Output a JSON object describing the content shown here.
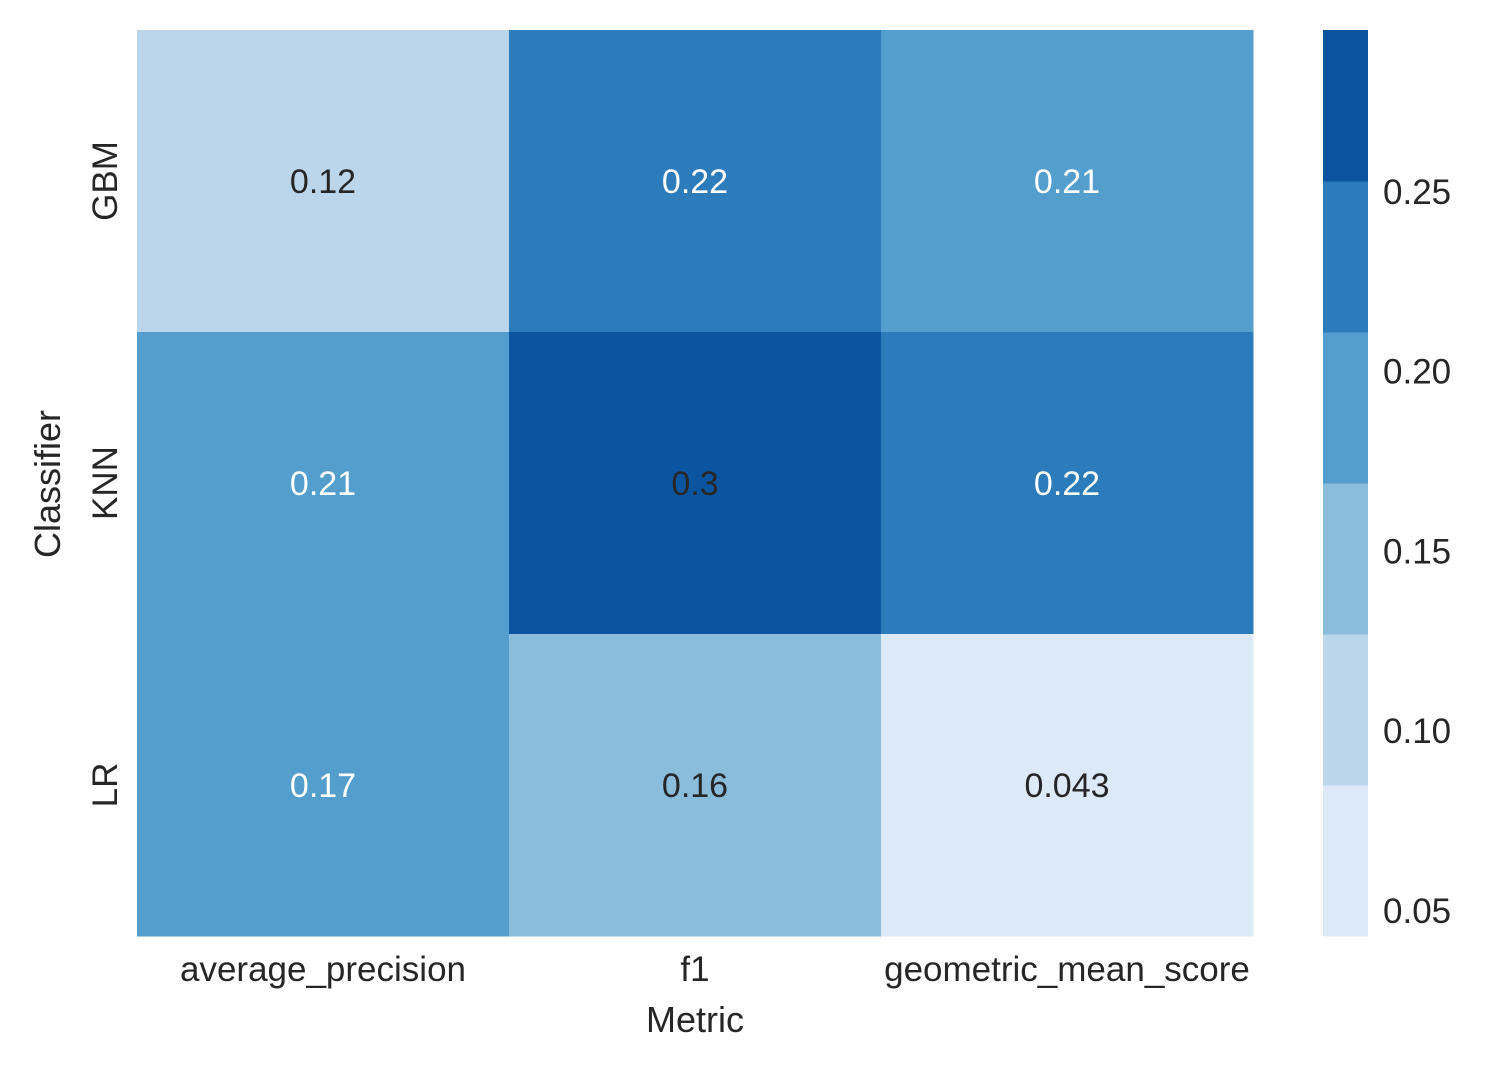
{
  "chart_data": {
    "type": "heatmap",
    "title": "",
    "xlabel": "Metric",
    "ylabel": "Classifier",
    "x_categories": [
      "average_precision",
      "f1",
      "geometric_mean_score"
    ],
    "y_categories": [
      "GBM",
      "KNN",
      "LR"
    ],
    "values": [
      [
        0.12,
        0.22,
        0.21
      ],
      [
        0.21,
        0.3,
        0.22
      ],
      [
        0.17,
        0.16,
        0.043
      ]
    ],
    "cell_labels": [
      [
        "0.12",
        "0.22",
        "0.21"
      ],
      [
        "0.21",
        "0.3",
        "0.22"
      ],
      [
        "0.17",
        "0.16",
        "0.043"
      ]
    ],
    "colorbar": {
      "range": [
        0.043,
        0.295
      ],
      "ticks": [
        0.05,
        0.1,
        0.15,
        0.2,
        0.25
      ],
      "tick_labels": [
        "0.05",
        "0.10",
        "0.15",
        "0.20",
        "0.25"
      ],
      "bins": [
        {
          "from": 0.043,
          "to": 0.085,
          "color": "#dce9f6"
        },
        {
          "from": 0.085,
          "to": 0.127,
          "color": "#bbd6eb"
        },
        {
          "from": 0.127,
          "to": 0.169,
          "color": "#8abcdc"
        },
        {
          "from": 0.169,
          "to": 0.211,
          "color": "#549ecd"
        },
        {
          "from": 0.211,
          "to": 0.253,
          "color": "#2c7bbb"
        },
        {
          "from": 0.253,
          "to": 0.295,
          "color": "#0b55a0"
        }
      ]
    },
    "text_colors": {
      "dark": "#262626",
      "light": "#ffffff"
    },
    "grid": false
  }
}
